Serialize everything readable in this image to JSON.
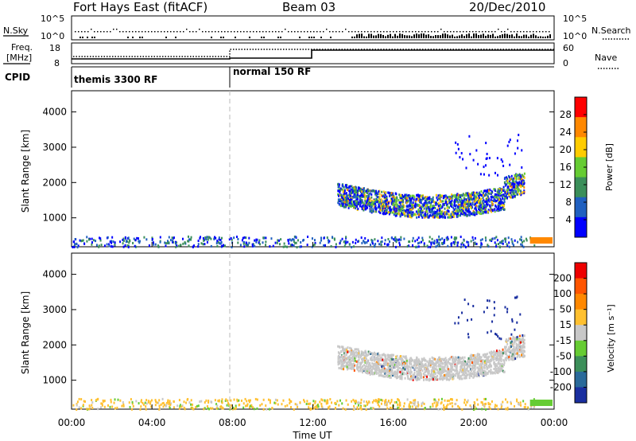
{
  "header": {
    "station": "Fort Hays East (fitACF)",
    "beam": "Beam 03",
    "date": "20/Dec/2010"
  },
  "top_panels": {
    "nsky_label": "N.Sky",
    "nsearch_label": "N.Search",
    "noise_ticks": [
      "10^5",
      "10^0"
    ],
    "freq_label_1": "Freq.",
    "freq_label_2": "[MHz]",
    "freq_ticks": [
      "18",
      "8"
    ],
    "nave_label": "Nave",
    "nave_ticks": [
      "60",
      "0"
    ],
    "cpid_label": "CPID",
    "cpid_segments": [
      {
        "label": "themis 3300 RF",
        "start_hour": 0,
        "end_hour": 8
      },
      {
        "label": "normal 150 RF",
        "start_hour": 8,
        "end_hour": 24
      }
    ]
  },
  "chart_data": [
    {
      "type": "heatmap",
      "name": "Power",
      "ylabel": "Slant Range [km]",
      "yticks": [
        "4000",
        "3000",
        "2000",
        "1000"
      ],
      "ylim": [
        180,
        4600
      ],
      "xlim": [
        0,
        24
      ],
      "colorbar_label": "Power [dB]",
      "colorbar_ticks": [
        "28",
        "24",
        "20",
        "16",
        "12",
        "8",
        "4"
      ],
      "colors": [
        "#0000ff",
        "#2060c0",
        "#3b8f5a",
        "#66cc33",
        "#ffcc00",
        "#ff8800",
        "#ff0000"
      ]
    },
    {
      "type": "heatmap",
      "name": "Velocity",
      "ylabel": "Slant Range [km]",
      "yticks": [
        "4000",
        "3000",
        "2000",
        "1000"
      ],
      "ylim": [
        180,
        4600
      ],
      "xlim": [
        0,
        24
      ],
      "colorbar_label": "Velocity [m s⁻¹]",
      "colorbar_ticks": [
        "200",
        "100",
        "50",
        "15",
        "-15",
        "-50",
        "-100",
        "-200"
      ],
      "colors": [
        "#1a2fa0",
        "#2a6a9a",
        "#3c8f5a",
        "#66cc33",
        "#c8c8c8",
        "#ffc030",
        "#ff8800",
        "#ff5500",
        "#ee0000"
      ]
    }
  ],
  "xaxis": {
    "label": "Time UT",
    "ticks": [
      "00:00",
      "04:00",
      "08:00",
      "12:00",
      "16:00",
      "20:00",
      "00:00"
    ]
  }
}
